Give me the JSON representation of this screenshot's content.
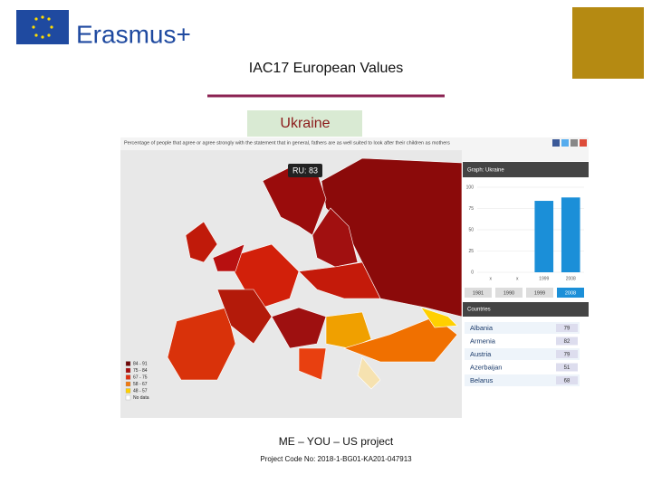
{
  "header": {
    "logo_text": "Erasmus+",
    "title": "IAC17 European Values",
    "subtitle": "Ukraine"
  },
  "map": {
    "caption": "Percentage of people that agree or agree strongly with the statement that in general, fathers are as well suited to look after their children as mothers",
    "tooltip": "RU: 83",
    "legend": [
      "84 - 91",
      "75 - 84",
      "67 - 75",
      "58 - 67",
      "48 - 57",
      "No data"
    ]
  },
  "graph": {
    "type": "bar",
    "title": "Graph: Ukraine",
    "categories": [
      "x",
      "x",
      "1999",
      "2008"
    ],
    "values": [
      null,
      null,
      84,
      88
    ],
    "ylim": [
      0,
      100
    ],
    "yticks": [
      0,
      25,
      50,
      75,
      100
    ],
    "color": "#1b8fd8"
  },
  "years": [
    "1981",
    "1990",
    "1999",
    "2008"
  ],
  "countries": {
    "title": "Countries",
    "rows": [
      [
        "Albania",
        "79"
      ],
      [
        "Armenia",
        "82"
      ],
      [
        "Austria",
        "79"
      ],
      [
        "Azerbaijan",
        "51"
      ],
      [
        "Belarus",
        "68"
      ]
    ]
  },
  "footer": {
    "project": "ME – YOU – US project",
    "code": "Project Code No: 2018-1-BG01-KA201-047913"
  }
}
